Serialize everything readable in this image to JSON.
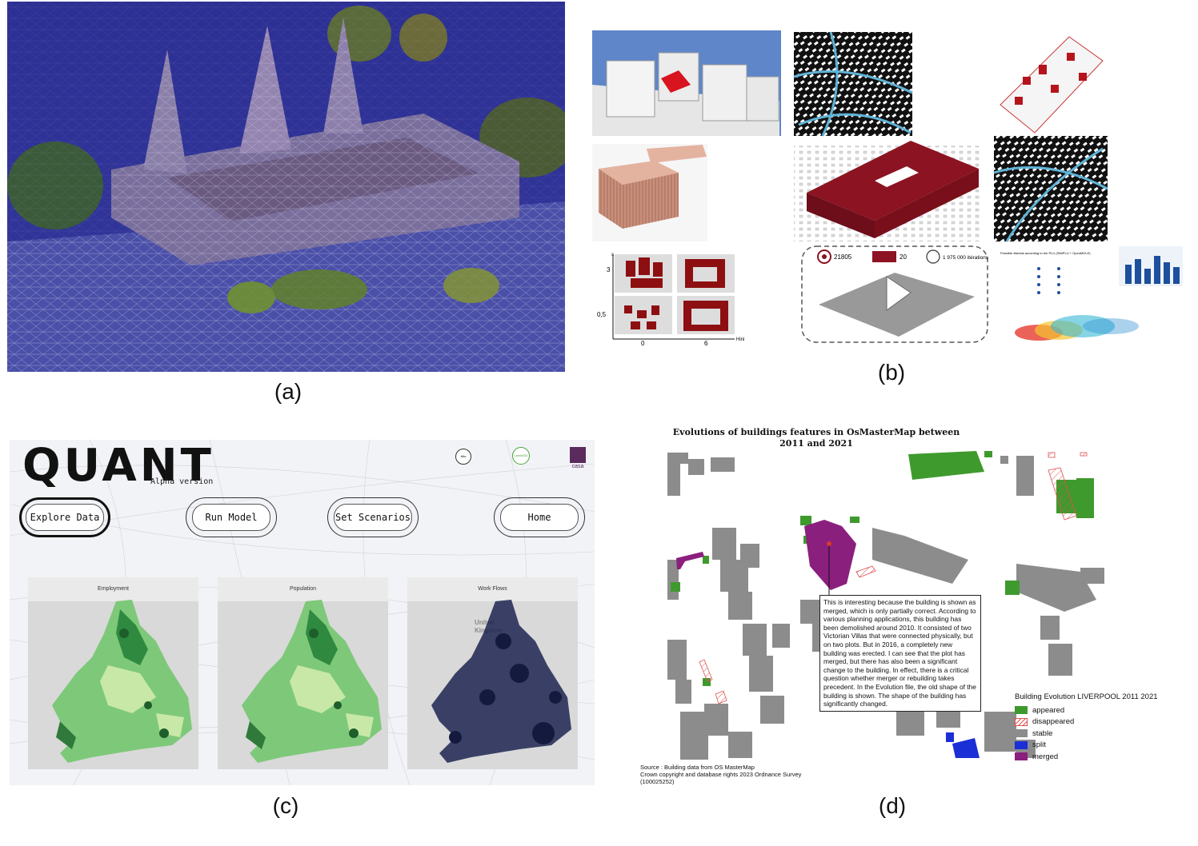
{
  "captions": {
    "a": "(a)",
    "b": "(b)",
    "c": "(c)",
    "d": "(d)"
  },
  "panel_b": {
    "stats": {
      "target": "21805",
      "blocks": "20",
      "iterations": "1 975 000 itérations"
    },
    "axis": {
      "y_top": "3",
      "y_bottom": "0,5",
      "x_left": "0",
      "x_right": "6",
      "x_label": "Hini",
      "y_label": "s"
    },
    "plu_title": "Possible districts according to the PLU (SIMPLU + OpenMOLE)"
  },
  "panel_c": {
    "logo": "QUANT",
    "version": "Alpha version",
    "badge_round": "Alto",
    "badge_green": "LeedsGD",
    "badge_casa": "casa",
    "nav": [
      "Explore Data",
      "Run Model",
      "Set Scenarios",
      "Home"
    ],
    "maps": [
      "Employment",
      "Population",
      "Work Flows"
    ],
    "map_label": "United Kingdom"
  },
  "panel_d": {
    "title_line1": "Evolutions of buildings features in OsMasterMap between",
    "title_line2": "2011 and 2021",
    "annotation": "This is interesting because the building is shown as merged, which is only partially correct. According to various planning applications, this building has been demolished around 2010. It consisted of two Victorian Villas that were connected physically, but on two plots. But in 2016, a completely new building was erected. I can see that the plot has merged, but there has also been a significant change to the building. In effect, there is a critical question whether merger or rebuilding takes precedent. In the Evolution file, the old shape of the building is shown. The shape of the building has significantly changed.",
    "legend_title": "Building Evolution LIVERPOOL 2011 2021",
    "legend": [
      {
        "label": "appeared",
        "color": "#3f9a2d"
      },
      {
        "label": "disappeared",
        "color": "#e05050"
      },
      {
        "label": "stable",
        "color": "#8c8c8c"
      },
      {
        "label": "split",
        "color": "#1a2fd6"
      },
      {
        "label": "merged",
        "color": "#8b1f7e"
      }
    ],
    "source_line1": "Source : Building data from OS MasterMap",
    "source_line2": "Crown copyright and database rights 2023 Ordnance Survey",
    "source_line3": "(100025252)"
  }
}
